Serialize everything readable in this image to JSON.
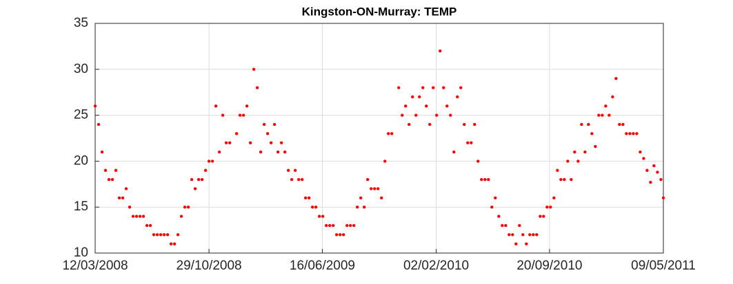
{
  "chart_data": {
    "type": "scatter",
    "title": "Kingston-ON-Murray: TEMP",
    "color": "#ff0000",
    "grid": true,
    "x": [
      "12/03/2008",
      "19/03/2008",
      "26/03/2008",
      "02/04/2008",
      "09/04/2008",
      "16/04/2008",
      "23/04/2008",
      "30/04/2008",
      "07/05/2008",
      "14/05/2008",
      "21/05/2008",
      "28/05/2008",
      "04/06/2008",
      "11/06/2008",
      "18/06/2008",
      "25/06/2008",
      "02/07/2008",
      "09/07/2008",
      "16/07/2008",
      "23/07/2008",
      "30/07/2008",
      "06/08/2008",
      "13/08/2008",
      "20/08/2008",
      "27/08/2008",
      "03/09/2008",
      "10/09/2008",
      "17/09/2008",
      "24/09/2008",
      "01/10/2008",
      "08/10/2008",
      "15/10/2008",
      "22/10/2008",
      "29/10/2008",
      "05/11/2008",
      "12/11/2008",
      "19/11/2008",
      "26/11/2008",
      "03/12/2008",
      "10/12/2008",
      "24/12/2008",
      "31/12/2008",
      "07/01/2009",
      "14/01/2009",
      "21/01/2009",
      "28/01/2009",
      "04/02/2009",
      "11/02/2009",
      "18/02/2009",
      "25/02/2009",
      "04/03/2009",
      "11/03/2009",
      "18/03/2009",
      "25/03/2009",
      "01/04/2009",
      "08/04/2009",
      "15/04/2009",
      "22/04/2009",
      "29/04/2009",
      "06/05/2009",
      "13/05/2009",
      "20/05/2009",
      "27/05/2009",
      "03/06/2009",
      "10/06/2009",
      "17/06/2009",
      "24/06/2009",
      "01/07/2009",
      "08/07/2009",
      "15/07/2009",
      "22/07/2009",
      "29/07/2009",
      "05/08/2009",
      "12/08/2009",
      "19/08/2009",
      "26/08/2009",
      "02/09/2009",
      "09/09/2009",
      "16/09/2009",
      "23/09/2009",
      "30/09/2009",
      "07/10/2009",
      "14/10/2009",
      "21/10/2009",
      "28/10/2009",
      "04/11/2009",
      "18/11/2009",
      "25/11/2009",
      "02/12/2009",
      "09/12/2009",
      "16/12/2009",
      "23/12/2009",
      "30/12/2009",
      "06/01/2010",
      "13/01/2010",
      "20/01/2010",
      "27/01/2010",
      "03/02/2010",
      "10/02/2010",
      "17/02/2010",
      "24/02/2010",
      "03/03/2010",
      "10/03/2010",
      "17/03/2010",
      "24/03/2010",
      "31/03/2010",
      "07/04/2010",
      "14/04/2010",
      "21/04/2010",
      "28/04/2010",
      "05/05/2010",
      "12/05/2010",
      "19/05/2010",
      "26/05/2010",
      "02/06/2010",
      "09/06/2010",
      "16/06/2010",
      "23/06/2010",
      "30/06/2010",
      "07/07/2010",
      "14/07/2010",
      "21/07/2010",
      "28/07/2010",
      "04/08/2010",
      "11/08/2010",
      "18/08/2010",
      "25/08/2010",
      "01/09/2010",
      "08/09/2010",
      "15/09/2010",
      "22/09/2010",
      "29/09/2010",
      "06/10/2010",
      "13/10/2010",
      "20/10/2010",
      "27/10/2010",
      "03/11/2010",
      "10/11/2010",
      "17/11/2010",
      "24/11/2010",
      "01/12/2010",
      "08/12/2010",
      "15/12/2010",
      "22/12/2010",
      "29/12/2010",
      "05/01/2011",
      "12/01/2011",
      "19/01/2011",
      "26/01/2011",
      "02/02/2011",
      "09/02/2011",
      "16/02/2011",
      "23/02/2011",
      "02/03/2011",
      "09/03/2011",
      "16/03/2011",
      "23/03/2011",
      "30/03/2011",
      "06/04/2011",
      "13/04/2011",
      "20/04/2011",
      "27/04/2011",
      "04/05/2011",
      "09/05/2011"
    ],
    "values": [
      26,
      24,
      21,
      19,
      18,
      18,
      19,
      16,
      16,
      17,
      15,
      14,
      14,
      14,
      14,
      13,
      13,
      12,
      12,
      12,
      12,
      12,
      11,
      11,
      12,
      14,
      15,
      15,
      18,
      17,
      18,
      18,
      19,
      20,
      20,
      26,
      21,
      25,
      22,
      22,
      23,
      25,
      25,
      26,
      22,
      30,
      28,
      21,
      24,
      23,
      22,
      24,
      21,
      22,
      21,
      19,
      18,
      19,
      18,
      18,
      16,
      16,
      15,
      15,
      14,
      14,
      13,
      13,
      13,
      12,
      12,
      12,
      13,
      13,
      13,
      15,
      16,
      15,
      18,
      17,
      17,
      17,
      16,
      20,
      23,
      23,
      28,
      25,
      26,
      24,
      27,
      25,
      27,
      28,
      26,
      24,
      28,
      25,
      32,
      28,
      26,
      25,
      21,
      27,
      28,
      24,
      22,
      22,
      24,
      20,
      18,
      18,
      18,
      15,
      16,
      14,
      13,
      13,
      12,
      12,
      11,
      13,
      12,
      11,
      12,
      12,
      12,
      14,
      14,
      15,
      15,
      16,
      19,
      18,
      18,
      20,
      18,
      21,
      20,
      24,
      21,
      24,
      23,
      21.6,
      25,
      25,
      26,
      25,
      27,
      29,
      24,
      24,
      23,
      23,
      23,
      23,
      21,
      20.3,
      19,
      17.7,
      19.5,
      18.8,
      18,
      16
    ],
    "xlim": [
      "12/03/2008",
      "09/05/2011"
    ],
    "xticks": [
      "12/03/2008",
      "29/10/2008",
      "16/06/2009",
      "02/02/2010",
      "20/09/2010",
      "09/05/2011"
    ],
    "ylim": [
      10,
      35
    ],
    "yticks": [
      10,
      15,
      20,
      25,
      30,
      35
    ]
  }
}
